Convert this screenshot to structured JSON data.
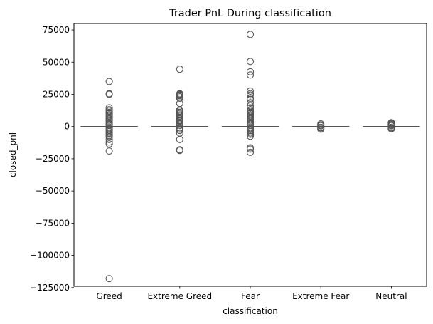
{
  "chart_data": {
    "type": "box",
    "title": "Trader PnL During classification",
    "xlabel": "classification",
    "ylabel": "closed_pnl",
    "ylim": [
      -124000,
      80000
    ],
    "y_ticks": [
      75000,
      50000,
      25000,
      0,
      -25000,
      -50000,
      -75000,
      -100000,
      -125000
    ],
    "y_tick_labels": [
      "75000",
      "50000",
      "25000",
      "0",
      "−25000",
      "−50000",
      "−75000",
      "−100000",
      "−125000"
    ],
    "grid": false,
    "categories": [
      "Greed",
      "Extreme Greed",
      "Fear",
      "Extreme Fear",
      "Neutral"
    ],
    "boxes": [
      {
        "category": "Greed",
        "q1": 0,
        "median": 0,
        "q3": 0,
        "whisker_low": 0,
        "whisker_high": 0,
        "outliers": [
          35000,
          25500,
          25000,
          14500,
          13000,
          12000,
          11000,
          10000,
          9000,
          8000,
          7000,
          6000,
          5000,
          4000,
          3000,
          2000,
          1500,
          1000,
          -1000,
          -2000,
          -3000,
          -4000,
          -5000,
          -6000,
          -7000,
          -8000,
          -10000,
          -12000,
          -13500,
          -19000,
          -118000
        ]
      },
      {
        "category": "Extreme Greed",
        "q1": 0,
        "median": 0,
        "q3": 0,
        "whisker_low": 0,
        "whisker_high": 0,
        "outliers": [
          44500,
          25500,
          25000,
          24500,
          24000,
          23000,
          22000,
          18000,
          13000,
          12000,
          11000,
          10000,
          9000,
          8000,
          7000,
          6000,
          5000,
          4500,
          4000,
          3000,
          2000,
          1000,
          -1000,
          -2000,
          -3000,
          -5000,
          -10000,
          -18000,
          -18500
        ]
      },
      {
        "category": "Fear",
        "q1": 0,
        "median": 0,
        "q3": 0,
        "whisker_low": 0,
        "whisker_high": 0,
        "outliers": [
          71500,
          50500,
          42500,
          40000,
          27500,
          25500,
          24500,
          22000,
          21000,
          18500,
          16000,
          14500,
          13000,
          12000,
          11000,
          10000,
          9000,
          8000,
          7000,
          6000,
          5000,
          4000,
          3000,
          2000,
          1000,
          -1000,
          -2000,
          -3000,
          -4000,
          -5000,
          -6000,
          -7500,
          -16500,
          -17500,
          -20000
        ]
      },
      {
        "category": "Extreme Fear",
        "q1": 0,
        "median": 0,
        "q3": 0,
        "whisker_low": 0,
        "whisker_high": 0,
        "outliers": [
          2000,
          1200,
          600,
          -600,
          -1200,
          -2000
        ]
      },
      {
        "category": "Neutral",
        "q1": 0,
        "median": 0,
        "q3": 0,
        "whisker_low": 0,
        "whisker_high": 0,
        "outliers": [
          3000,
          2400,
          1800,
          1200,
          600,
          -600,
          -1200,
          -1800
        ]
      }
    ],
    "colors": {
      "box_line": "#555555",
      "marker_edge": "#555555",
      "axes": "#000000"
    }
  }
}
